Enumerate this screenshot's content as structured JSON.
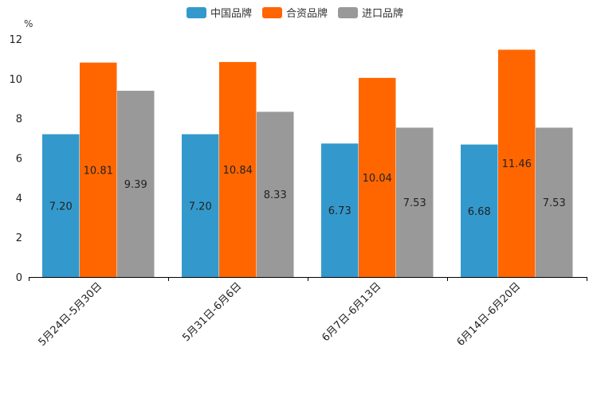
{
  "chart_data": {
    "type": "bar",
    "title": "",
    "xlabel": "",
    "ylabel": "%",
    "ylim": [
      0,
      12
    ],
    "yticks": [
      0,
      2,
      4,
      6,
      8,
      10,
      12
    ],
    "grid": false,
    "legend_position": "top-center",
    "categories": [
      "5月24日-5月30日",
      "5月31日-6月6日",
      "6月7日-6月13日",
      "6月14日-6月20日"
    ],
    "series": [
      {
        "name": "中国品牌",
        "color": "#3399cc",
        "values": [
          7.2,
          7.2,
          6.73,
          6.68
        ],
        "labels": [
          "7.20",
          "7.20",
          "6.73",
          "6.68"
        ]
      },
      {
        "name": "合资品牌",
        "color": "#ff6600",
        "values": [
          10.81,
          10.84,
          10.04,
          11.46
        ],
        "labels": [
          "10.81",
          "10.84",
          "10.04",
          "11.46"
        ]
      },
      {
        "name": "进口品牌",
        "color": "#999999",
        "values": [
          9.39,
          8.33,
          7.53,
          7.53
        ],
        "labels": [
          "9.39",
          "8.33",
          "7.53",
          "7.53"
        ]
      }
    ]
  }
}
